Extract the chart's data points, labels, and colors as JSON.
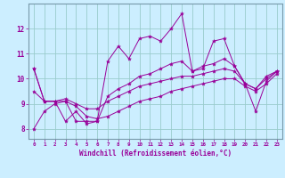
{
  "xlabel": "Windchill (Refroidissement éolien,°C)",
  "bg_color": "#cceeff",
  "line_color": "#990099",
  "grid_color": "#99cccc",
  "xlim": [
    -0.5,
    23.5
  ],
  "ylim": [
    7.6,
    13.0
  ],
  "xticks": [
    0,
    1,
    2,
    3,
    4,
    5,
    6,
    7,
    8,
    9,
    10,
    11,
    12,
    13,
    14,
    15,
    16,
    17,
    18,
    19,
    20,
    21,
    22,
    23
  ],
  "yticks": [
    8,
    9,
    10,
    11,
    12
  ],
  "x": [
    0,
    1,
    2,
    3,
    4,
    5,
    6,
    7,
    8,
    9,
    10,
    11,
    12,
    13,
    14,
    15,
    16,
    17,
    18,
    19,
    20,
    21,
    22,
    23
  ],
  "lines": [
    [
      10.4,
      9.1,
      9.1,
      8.3,
      8.7,
      8.2,
      8.3,
      10.7,
      11.3,
      10.8,
      11.6,
      11.7,
      11.5,
      12.0,
      12.6,
      10.3,
      10.4,
      11.5,
      11.6,
      10.5,
      9.8,
      8.7,
      9.9,
      10.3
    ],
    [
      10.4,
      9.1,
      9.1,
      9.1,
      8.3,
      8.3,
      8.3,
      9.3,
      9.6,
      9.8,
      10.1,
      10.2,
      10.4,
      10.6,
      10.7,
      10.3,
      10.5,
      10.6,
      10.8,
      10.5,
      9.8,
      9.6,
      10.1,
      10.3
    ],
    [
      9.5,
      9.1,
      9.1,
      9.2,
      9.0,
      8.8,
      8.8,
      9.1,
      9.3,
      9.5,
      9.7,
      9.8,
      9.9,
      10.0,
      10.1,
      10.1,
      10.2,
      10.3,
      10.4,
      10.3,
      9.8,
      9.6,
      10.0,
      10.3
    ],
    [
      8.0,
      8.7,
      9.0,
      9.1,
      8.9,
      8.5,
      8.4,
      8.5,
      8.7,
      8.9,
      9.1,
      9.2,
      9.3,
      9.5,
      9.6,
      9.7,
      9.8,
      9.9,
      10.0,
      10.0,
      9.7,
      9.5,
      9.8,
      10.2
    ]
  ]
}
